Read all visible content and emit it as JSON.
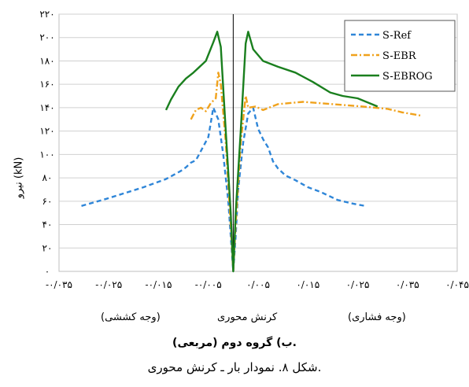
{
  "chart_data": {
    "type": "line",
    "ylabel": "نیرو (kN)",
    "xlabel_segments": {
      "left": "(وجه کششی)",
      "center": "کرنش محوری",
      "right": "(وجه فشاری)"
    },
    "xlim": [
      -0.035,
      0.045
    ],
    "ylim": [
      0,
      220
    ],
    "x_tick_values": [
      -0.035,
      -0.025,
      -0.015,
      -0.005,
      0.005,
      0.015,
      0.025,
      0.035,
      0.045
    ],
    "y_tick_values": [
      0,
      20,
      40,
      60,
      80,
      100,
      120,
      140,
      160,
      180,
      200,
      220
    ],
    "x_tick_labels": [
      "-۰/۰۳۵",
      "-۰/۰۲۵",
      "-۰/۰۱۵",
      "-۰/۰۰۵",
      "۰/۰۰۵",
      "۰/۰۱۵",
      "۰/۰۲۵",
      "۰/۰۳۵",
      "۰/۰۴۵"
    ],
    "y_tick_labels": [
      "۰",
      "۲۰",
      "۴۰",
      "۶۰",
      "۸۰",
      "۱۰۰",
      "۱۲۰",
      "۱۴۰",
      "۱۶۰",
      "۱۸۰",
      "۲۰۰",
      "۲۲۰"
    ],
    "grid": "horizontal",
    "legend_position": "top-right",
    "series": [
      {
        "name": "S-Ref",
        "color": "#2f86d8",
        "style": "dashed",
        "x": [
          -0.0305,
          -0.0255,
          -0.018,
          -0.0135,
          -0.0105,
          -0.0095,
          -0.0085,
          -0.0075,
          -0.0065,
          -0.005,
          -0.004,
          -0.003,
          -0.002,
          -0.001,
          -0.0005,
          0,
          0.0005,
          0.001,
          0.002,
          0.003,
          0.004,
          0.005,
          0.006,
          0.007,
          0.008,
          0.009,
          0.0105,
          0.0125,
          0.015,
          0.0175,
          0.021,
          0.024,
          0.0265
        ],
        "y": [
          56,
          62,
          72,
          79,
          86,
          89,
          93,
          95,
          103,
          115,
          140,
          130,
          100,
          60,
          30,
          0,
          30,
          70,
          110,
          135,
          140,
          122,
          113,
          106,
          94,
          88,
          82,
          78,
          72,
          68,
          61,
          58,
          56
        ]
      },
      {
        "name": "S-EBR",
        "color": "#f0a21c",
        "style": "dashdot",
        "x": [
          -0.0085,
          -0.0075,
          -0.0065,
          -0.0055,
          -0.0045,
          -0.0035,
          -0.003,
          -0.0025,
          -0.0015,
          -0.0005,
          0,
          0.0005,
          0.0015,
          0.0025,
          0.003,
          0.0045,
          0.006,
          0.009,
          0.014,
          0.02,
          0.026,
          0.031,
          0.034,
          0.038
        ],
        "y": [
          130,
          138,
          140,
          137,
          144,
          148,
          170,
          160,
          110,
          40,
          0,
          40,
          110,
          150,
          140,
          141,
          138,
          143,
          145,
          143,
          141,
          139,
          136,
          133
        ]
      },
      {
        "name": "S-EBROG",
        "color": "#1a7f1e",
        "style": "solid",
        "x": [
          -0.0135,
          -0.0125,
          -0.011,
          -0.0095,
          -0.008,
          -0.0055,
          -0.004,
          -0.0032,
          -0.0025,
          -0.0015,
          -0.0005,
          0,
          0.0005,
          0.0015,
          0.0025,
          0.003,
          0.004,
          0.006,
          0.009,
          0.0125,
          0.016,
          0.0195,
          0.022,
          0.025,
          0.029
        ],
        "y": [
          138,
          147,
          158,
          165,
          170,
          180,
          196,
          205,
          192,
          120,
          50,
          0,
          50,
          120,
          195,
          205,
          190,
          180,
          175,
          170,
          162,
          153,
          150,
          148,
          141
        ]
      }
    ]
  },
  "caption": {
    "subfigure": "ب) گروه دوم (مربعی).",
    "figure": "شکل ۸. نمودار بار ـ کرنش محوری."
  }
}
